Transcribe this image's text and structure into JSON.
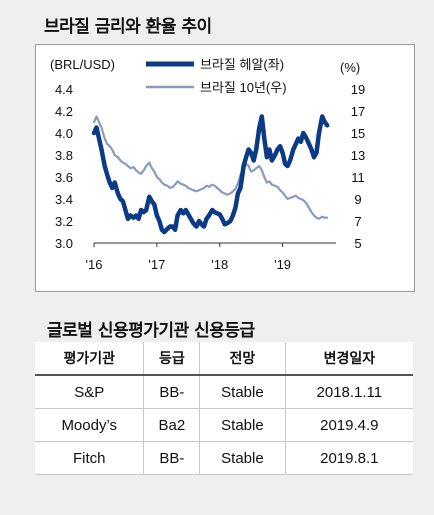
{
  "title": "브라질 금리와 환율 추이",
  "chart_data": {
    "type": "line",
    "left_axis_label": "(BRL/USD)",
    "right_axis_label": "(%)",
    "left_ticks": [
      "4.4",
      "4.2",
      "4.0",
      "3.8",
      "3.6",
      "3.4",
      "3.2",
      "3.0"
    ],
    "right_ticks": [
      "19",
      "17",
      "15",
      "13",
      "11",
      "9",
      "7",
      "5"
    ],
    "x_ticks": [
      "'16",
      "'17",
      "'18",
      "'19"
    ],
    "ylim_left": [
      3.0,
      4.4
    ],
    "ylim_right": [
      5,
      19
    ],
    "series": [
      {
        "name": "브라질 헤알(좌)",
        "axis": "left",
        "color": "#0b3a86",
        "x": [
          2016.0,
          2016.04,
          2016.08,
          2016.12,
          2016.17,
          2016.21,
          2016.25,
          2016.29,
          2016.33,
          2016.38,
          2016.42,
          2016.46,
          2016.5,
          2016.54,
          2016.58,
          2016.63,
          2016.67,
          2016.71,
          2016.75,
          2016.79,
          2016.83,
          2016.88,
          2016.92,
          2016.96,
          2017.0,
          2017.04,
          2017.08,
          2017.12,
          2017.17,
          2017.21,
          2017.25,
          2017.29,
          2017.33,
          2017.38,
          2017.42,
          2017.46,
          2017.5,
          2017.54,
          2017.58,
          2017.63,
          2017.67,
          2017.71,
          2017.75,
          2017.79,
          2017.83,
          2017.88,
          2017.92,
          2017.96,
          2018.0,
          2018.04,
          2018.08,
          2018.12,
          2018.17,
          2018.21,
          2018.25,
          2018.29,
          2018.33,
          2018.38,
          2018.42,
          2018.46,
          2018.5,
          2018.54,
          2018.58,
          2018.63,
          2018.67,
          2018.71,
          2018.75,
          2018.79,
          2018.83,
          2018.88,
          2018.92,
          2018.96,
          2019.0,
          2019.04,
          2019.08,
          2019.12,
          2019.17,
          2019.21,
          2019.25,
          2019.29,
          2019.33,
          2019.38,
          2019.42,
          2019.46,
          2019.5,
          2019.54,
          2019.58,
          2019.63,
          2019.67,
          2019.71
        ],
        "values": [
          4.0,
          4.05,
          3.95,
          3.85,
          3.7,
          3.62,
          3.55,
          3.5,
          3.55,
          3.45,
          3.4,
          3.38,
          3.3,
          3.22,
          3.25,
          3.23,
          3.25,
          3.22,
          3.3,
          3.28,
          3.3,
          3.42,
          3.38,
          3.35,
          3.25,
          3.2,
          3.12,
          3.1,
          3.13,
          3.15,
          3.15,
          3.12,
          3.25,
          3.3,
          3.27,
          3.3,
          3.26,
          3.22,
          3.18,
          3.15,
          3.2,
          3.17,
          3.15,
          3.22,
          3.25,
          3.3,
          3.28,
          3.27,
          3.26,
          3.22,
          3.17,
          3.18,
          3.2,
          3.25,
          3.32,
          3.45,
          3.5,
          3.7,
          3.78,
          3.85,
          3.82,
          3.75,
          3.85,
          4.05,
          4.15,
          3.95,
          3.78,
          3.85,
          3.75,
          3.8,
          3.85,
          3.88,
          3.82,
          3.72,
          3.7,
          3.75,
          3.85,
          3.9,
          3.95,
          3.92,
          4.0,
          3.95,
          3.9,
          3.85,
          3.78,
          3.82,
          4.0,
          4.15,
          4.1,
          4.07
        ]
      },
      {
        "name": "브라질 10년(우)",
        "axis": "right",
        "color": "#8a9bc0",
        "x": [
          2016.0,
          2016.04,
          2016.08,
          2016.12,
          2016.17,
          2016.21,
          2016.25,
          2016.29,
          2016.33,
          2016.38,
          2016.42,
          2016.46,
          2016.5,
          2016.54,
          2016.58,
          2016.63,
          2016.67,
          2016.71,
          2016.75,
          2016.79,
          2016.83,
          2016.88,
          2016.92,
          2016.96,
          2017.0,
          2017.04,
          2017.08,
          2017.12,
          2017.17,
          2017.21,
          2017.25,
          2017.29,
          2017.33,
          2017.38,
          2017.42,
          2017.46,
          2017.5,
          2017.54,
          2017.58,
          2017.63,
          2017.67,
          2017.71,
          2017.75,
          2017.79,
          2017.83,
          2017.88,
          2017.92,
          2017.96,
          2018.0,
          2018.04,
          2018.08,
          2018.12,
          2018.17,
          2018.21,
          2018.25,
          2018.29,
          2018.33,
          2018.38,
          2018.42,
          2018.46,
          2018.5,
          2018.54,
          2018.58,
          2018.63,
          2018.67,
          2018.71,
          2018.75,
          2018.79,
          2018.83,
          2018.88,
          2018.92,
          2018.96,
          2019.0,
          2019.04,
          2019.08,
          2019.12,
          2019.17,
          2019.21,
          2019.25,
          2019.29,
          2019.33,
          2019.38,
          2019.42,
          2019.46,
          2019.5,
          2019.54,
          2019.58,
          2019.63,
          2019.67,
          2019.71
        ],
        "values": [
          16.0,
          16.5,
          16.0,
          15.5,
          14.5,
          14.0,
          13.8,
          13.5,
          13.0,
          12.8,
          12.5,
          12.3,
          12.2,
          12.0,
          11.8,
          11.9,
          11.6,
          11.4,
          11.3,
          11.6,
          12.0,
          12.3,
          11.8,
          11.5,
          11.0,
          10.8,
          10.5,
          10.3,
          10.2,
          10.0,
          10.1,
          10.3,
          10.6,
          10.4,
          10.3,
          10.2,
          10.0,
          9.9,
          9.8,
          9.7,
          9.8,
          9.9,
          10.0,
          10.2,
          10.1,
          10.3,
          10.2,
          10.0,
          9.8,
          9.6,
          9.5,
          9.4,
          9.5,
          9.7,
          9.9,
          10.4,
          11.2,
          11.8,
          12.2,
          12.0,
          11.5,
          11.6,
          11.8,
          12.0,
          11.6,
          11.0,
          10.5,
          10.6,
          10.3,
          10.2,
          10.1,
          9.8,
          9.6,
          9.3,
          9.0,
          9.1,
          9.2,
          9.3,
          9.1,
          9.0,
          8.9,
          8.6,
          8.2,
          7.8,
          7.5,
          7.3,
          7.2,
          7.4,
          7.3,
          7.3
        ]
      }
    ]
  },
  "table": {
    "title": "글로벌 신용평가기관 신용등급",
    "headers": [
      "평가기관",
      "등급",
      "전망",
      "변경일자"
    ],
    "rows": [
      [
        "S&P",
        "BB-",
        "Stable",
        "2018.1.11"
      ],
      [
        "Moody’s",
        "Ba2",
        "Stable",
        "2019.4.9"
      ],
      [
        "Fitch",
        "BB-",
        "Stable",
        "2019.8.1"
      ]
    ]
  }
}
